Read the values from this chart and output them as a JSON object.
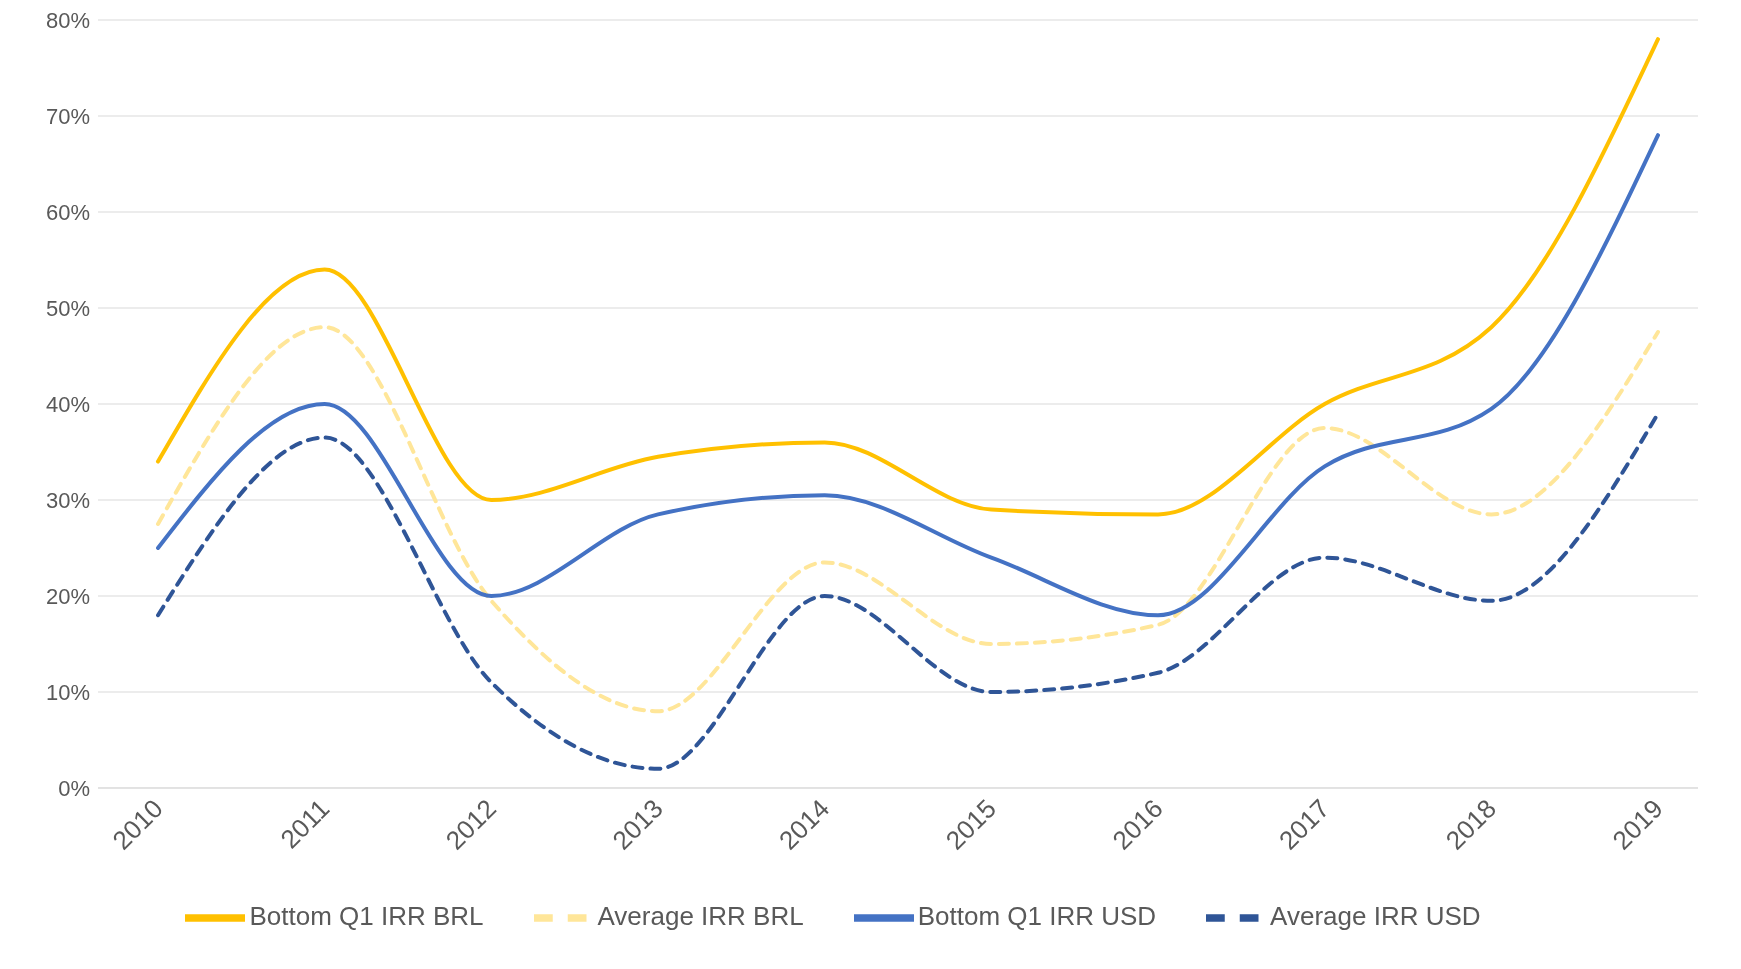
{
  "chart_data": {
    "type": "line",
    "categories": [
      "2010",
      "2011",
      "2012",
      "2013",
      "2014",
      "2015",
      "2016",
      "2017",
      "2018",
      "2019"
    ],
    "series": [
      {
        "name": "Bottom Q1 IRR BRL",
        "color": "#ffc000",
        "line_style": "solid",
        "values": [
          34,
          54,
          30,
          34.5,
          36,
          29,
          28.5,
          40,
          48,
          78
        ]
      },
      {
        "name": "Average IRR BRL",
        "color": "#ffe699",
        "line_style": "dashed",
        "values": [
          27.5,
          48,
          19.5,
          8,
          23.5,
          15,
          17,
          37.5,
          28.5,
          47.5
        ]
      },
      {
        "name": "Bottom Q1 IRR USD",
        "color": "#4472c4",
        "line_style": "solid",
        "values": [
          25,
          40,
          20,
          28.5,
          30.5,
          24,
          18,
          33.5,
          39.5,
          68
        ]
      },
      {
        "name": "Average IRR USD",
        "color": "#2f5597",
        "line_style": "dashed",
        "values": [
          18,
          36.5,
          11,
          2,
          20,
          10,
          12,
          24,
          19.5,
          39
        ]
      }
    ],
    "ylim": [
      0,
      80
    ],
    "yticks": [
      {
        "value": 0,
        "label": "0%"
      },
      {
        "value": 10,
        "label": "10%"
      },
      {
        "value": 20,
        "label": "20%"
      },
      {
        "value": 30,
        "label": "30%"
      },
      {
        "value": 40,
        "label": "40%"
      },
      {
        "value": 50,
        "label": "50%"
      },
      {
        "value": 60,
        "label": "60%"
      },
      {
        "value": 70,
        "label": "70%"
      },
      {
        "value": 80,
        "label": "80%"
      }
    ],
    "grid": "y",
    "legend": "bottom"
  }
}
